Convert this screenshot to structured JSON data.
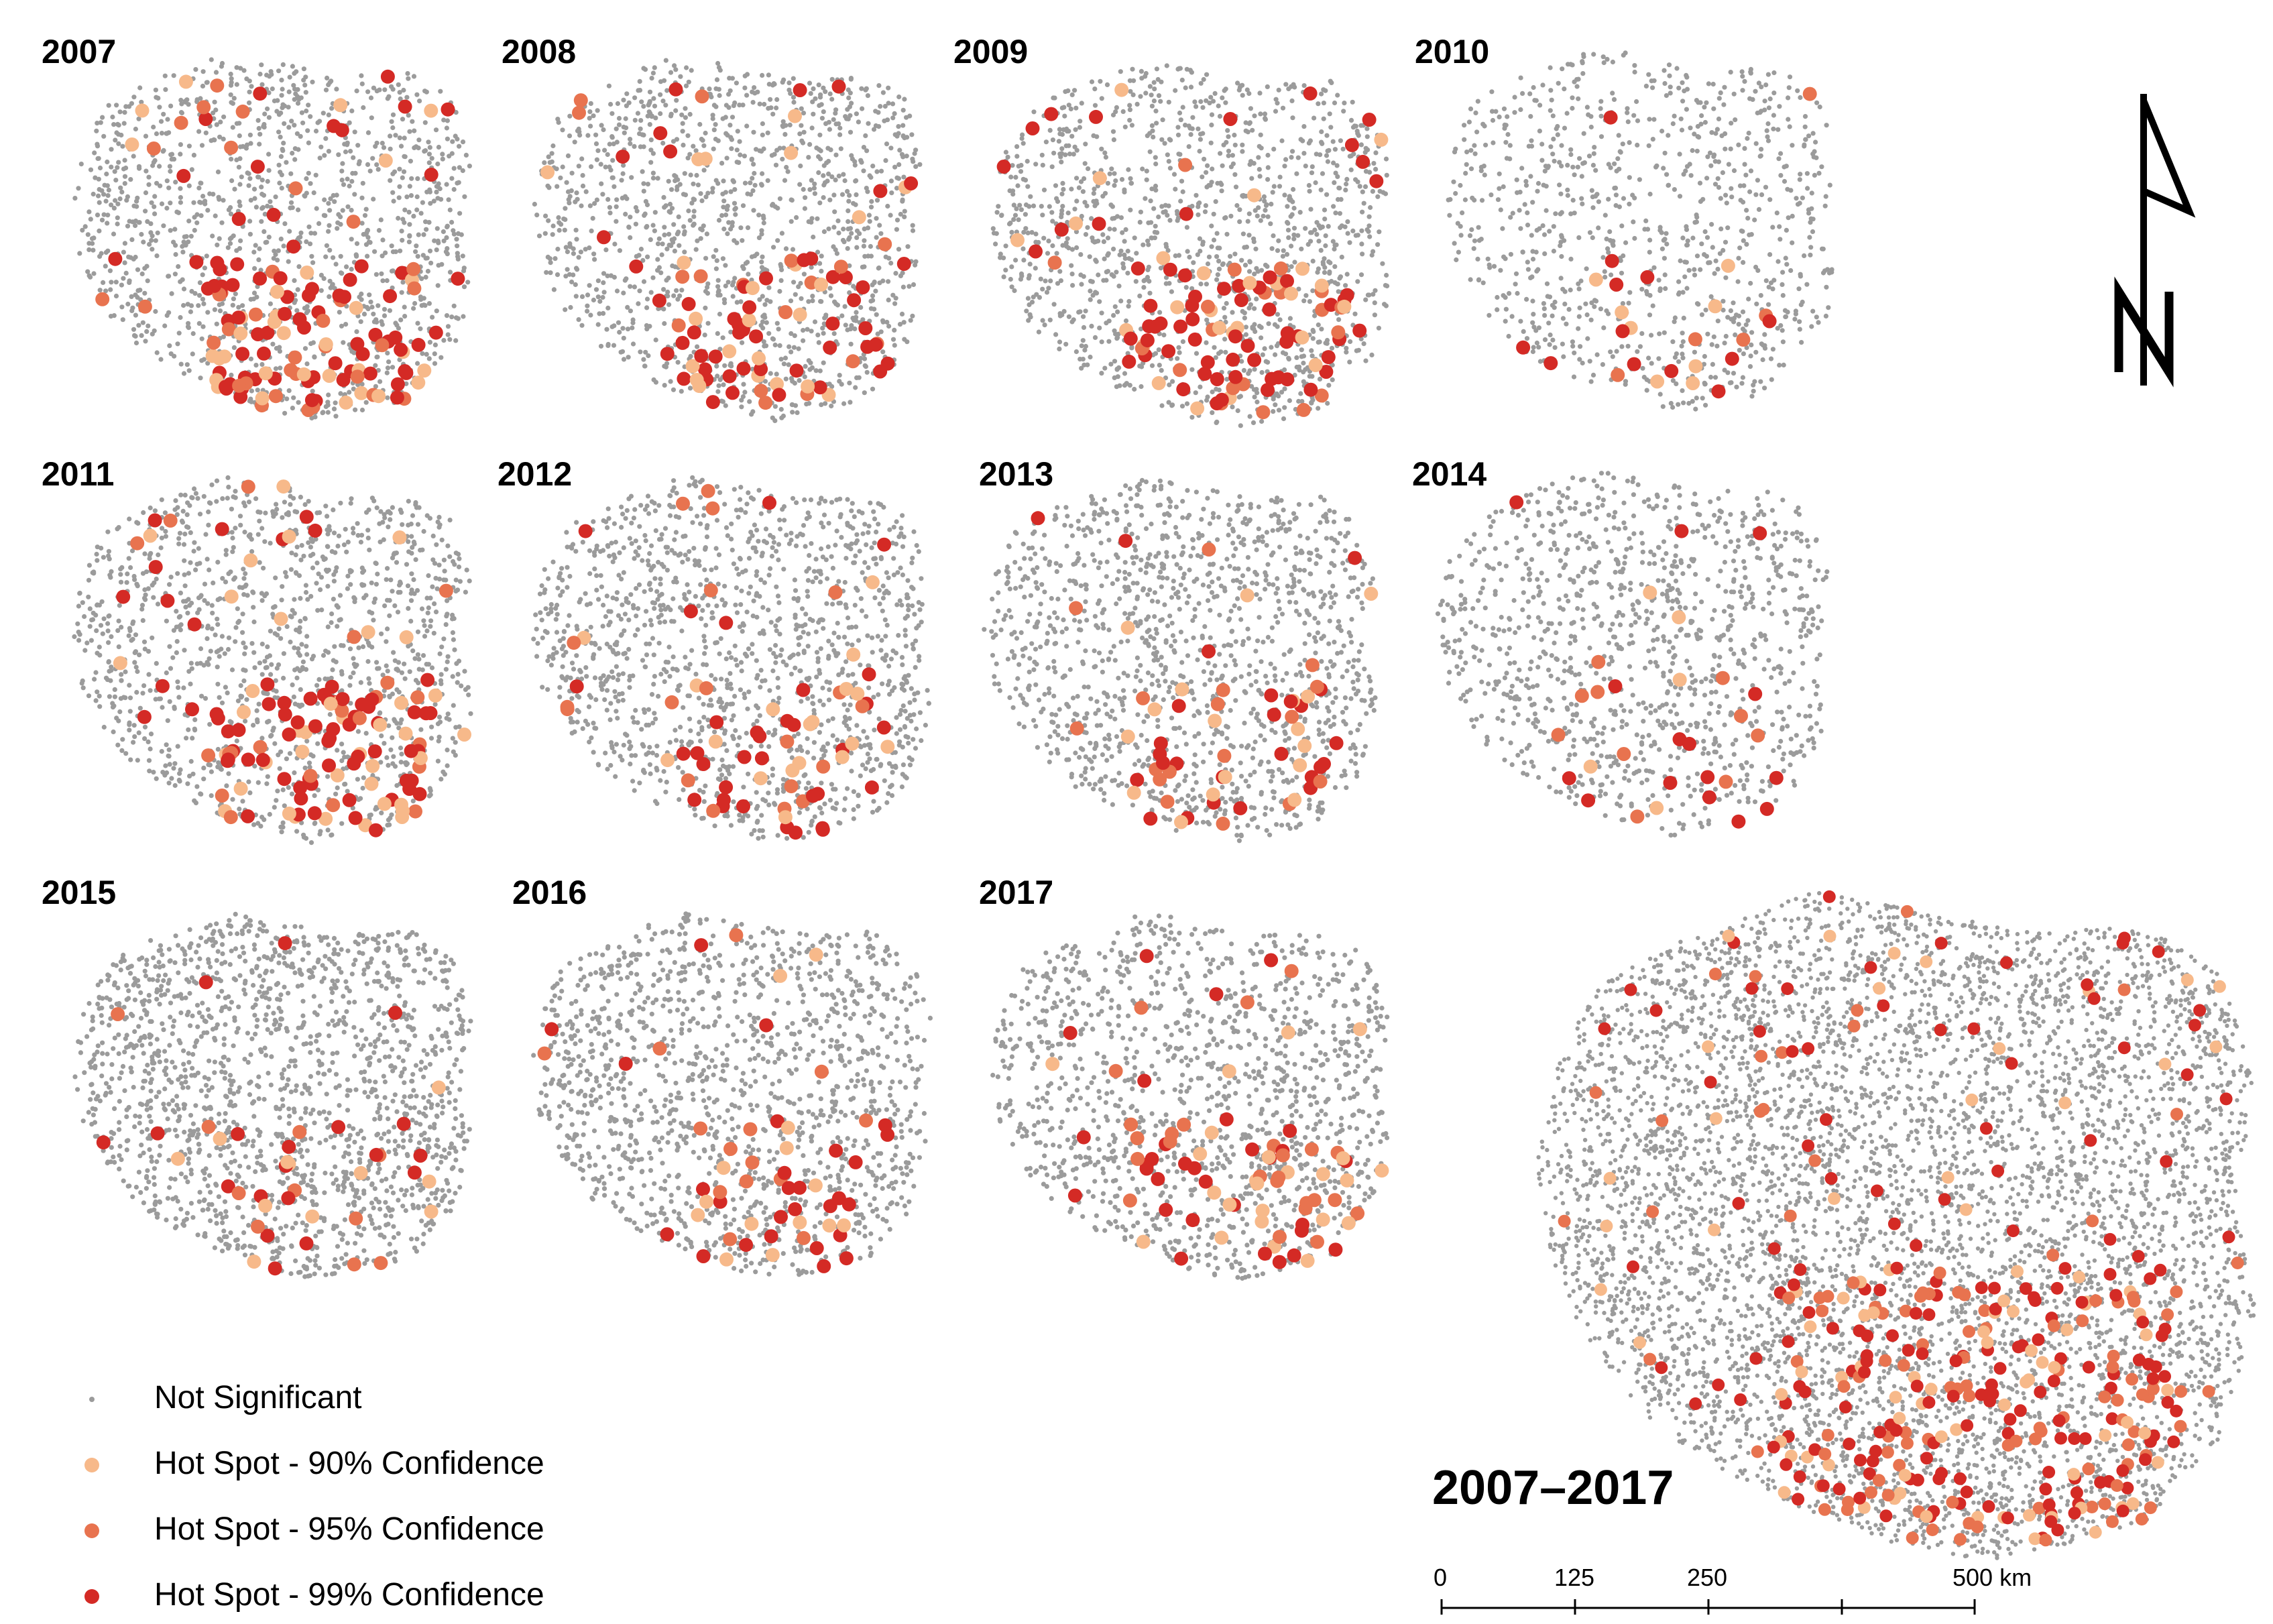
{
  "colors": {
    "not_significant": "#9b9b9b",
    "hot_90": "#f7b98a",
    "hot_95": "#e8734f",
    "hot_99": "#d42a25"
  },
  "panels": [
    {
      "year": "2007"
    },
    {
      "year": "2008"
    },
    {
      "year": "2009"
    },
    {
      "year": "2010"
    },
    {
      "year": "2011"
    },
    {
      "year": "2012"
    },
    {
      "year": "2013"
    },
    {
      "year": "2014"
    },
    {
      "year": "2015"
    },
    {
      "year": "2016"
    },
    {
      "year": "2017"
    }
  ],
  "summary_panel": {
    "label": "2007–2017"
  },
  "legend": {
    "items": [
      {
        "label": "Not Significant",
        "color": "#9b9b9b"
      },
      {
        "label": "Hot Spot - 90% Confidence",
        "color": "#f7b98a"
      },
      {
        "label": "Hot Spot - 95% Confidence",
        "color": "#e8734f"
      },
      {
        "label": "Hot Spot - 99% Confidence",
        "color": "#d42a25"
      }
    ]
  },
  "scale_bar": {
    "ticks": [
      "0",
      "125",
      "250",
      "500 km"
    ]
  },
  "north_arrow": {
    "icon": "north-arrow-icon",
    "label": "N"
  }
}
